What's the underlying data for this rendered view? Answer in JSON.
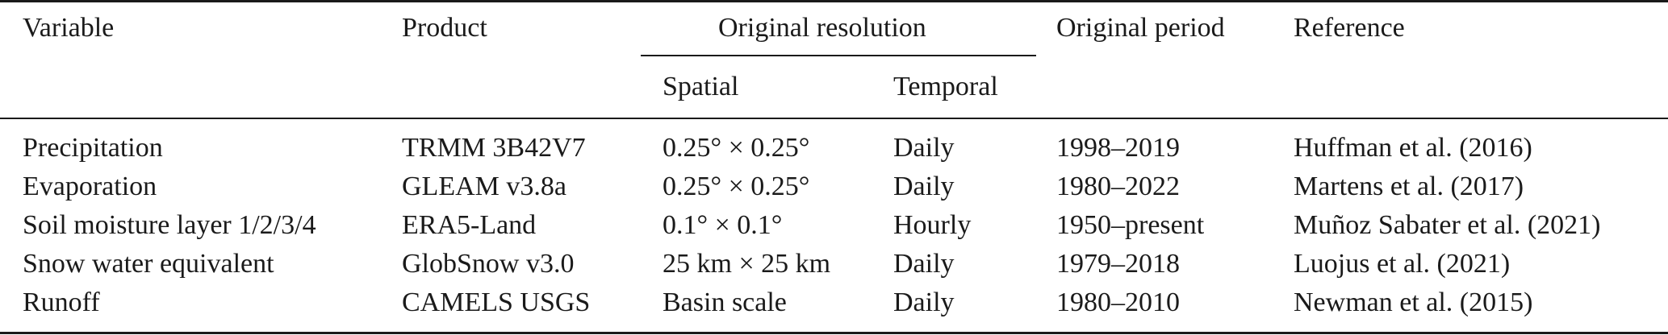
{
  "header": {
    "variable": "Variable",
    "product": "Product",
    "original_resolution": "Original resolution",
    "spatial": "Spatial",
    "temporal": "Temporal",
    "original_period": "Original period",
    "reference": "Reference"
  },
  "rows": [
    {
      "variable": "Precipitation",
      "product": "TRMM 3B42V7",
      "spatial": "0.25° × 0.25°",
      "temporal": "Daily",
      "period": "1998–2019",
      "reference": "Huffman et al. (2016)"
    },
    {
      "variable": "Evaporation",
      "product": "GLEAM v3.8a",
      "spatial": "0.25° × 0.25°",
      "temporal": "Daily",
      "period": "1980–2022",
      "reference": "Martens et al. (2017)"
    },
    {
      "variable": "Soil moisture layer 1/2/3/4",
      "product": "ERA5-Land",
      "spatial": "0.1° × 0.1°",
      "temporal": "Hourly",
      "period": "1950–present",
      "reference": "Muñoz Sabater et al. (2021)"
    },
    {
      "variable": "Snow water equivalent",
      "product": "GlobSnow v3.0",
      "spatial": "25 km × 25 km",
      "temporal": "Daily",
      "period": "1979–2018",
      "reference": "Luojus et al. (2021)"
    },
    {
      "variable": "Runoff",
      "product": "CAMELS USGS",
      "spatial": "Basin scale",
      "temporal": "Daily",
      "period": "1980–2010",
      "reference": "Newman et al. (2015)"
    }
  ]
}
